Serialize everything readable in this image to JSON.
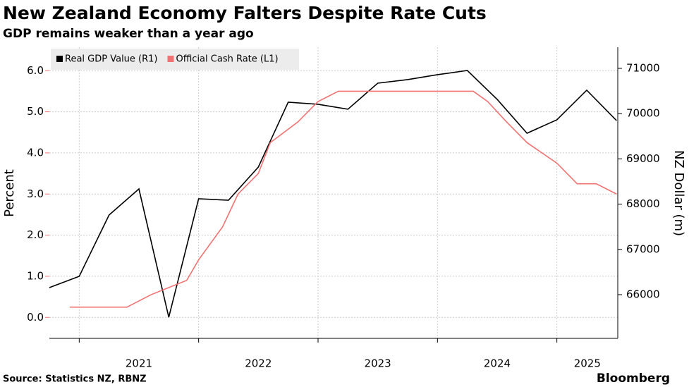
{
  "chart_data": {
    "type": "line",
    "title": "New Zealand Economy Falters Despite Rate Cuts",
    "subtitle": "GDP remains weaker than a year ago",
    "source": "Source:  Statistics NZ, RBNZ",
    "brand": "Bloomberg",
    "ylabel": "Percent",
    "y2label": "NZ Dollar (m)",
    "xlim": [
      2020.75,
      2025.51
    ],
    "xticks": [
      2021,
      2022,
      2023,
      2024,
      2025
    ],
    "ylim": [
      -0.51,
      6.57
    ],
    "yticks": [
      {
        "value": 0,
        "label": "0.0"
      },
      {
        "value": 1,
        "label": "1.0"
      },
      {
        "value": 2,
        "label": "2.0"
      },
      {
        "value": 3,
        "label": "3.0"
      },
      {
        "value": 4,
        "label": "4.0"
      },
      {
        "value": 5,
        "label": "5.0"
      },
      {
        "value": 6,
        "label": "6.0"
      }
    ],
    "y2lim": [
      65034,
      71467
    ],
    "y2ticks": [
      66000,
      67000,
      68000,
      69000,
      70000,
      71000
    ],
    "grid": true,
    "legend": "top-left",
    "series": [
      {
        "name": "Real GDP Value (R1)",
        "color": "#000000",
        "axis": "y2",
        "x": [
          2020.75,
          2021.0,
          2021.25,
          2021.5,
          2021.75,
          2022.0,
          2022.25,
          2022.5,
          2022.75,
          2023.0,
          2023.25,
          2023.5,
          2023.75,
          2024.0,
          2024.25,
          2024.5,
          2024.75,
          2025.0,
          2025.25,
          2025.5
        ],
        "values": [
          66156,
          66405,
          67760,
          68336,
          65500,
          68118,
          68087,
          68819,
          70252,
          70206,
          70097,
          70673,
          70751,
          70860,
          70953,
          70315,
          69567,
          69863,
          70517,
          69847
        ]
      },
      {
        "name": "Official Cash Rate (L1)",
        "color": "#f07272",
        "x": [
          2020.92,
          2021.4,
          2021.6,
          2021.9,
          2022.0,
          2022.2,
          2022.33,
          2022.5,
          2022.6,
          2022.83,
          2023.0,
          2023.17,
          2024.3,
          2024.42,
          2024.58,
          2024.75,
          2025.0,
          2025.17,
          2025.33,
          2025.5
        ],
        "values": [
          0.25,
          0.25,
          0.55,
          0.9,
          1.4,
          2.2,
          3.0,
          3.5,
          4.25,
          4.75,
          5.25,
          5.5,
          5.5,
          5.25,
          4.75,
          4.25,
          3.75,
          3.25,
          3.25,
          3.0
        ]
      }
    ]
  }
}
